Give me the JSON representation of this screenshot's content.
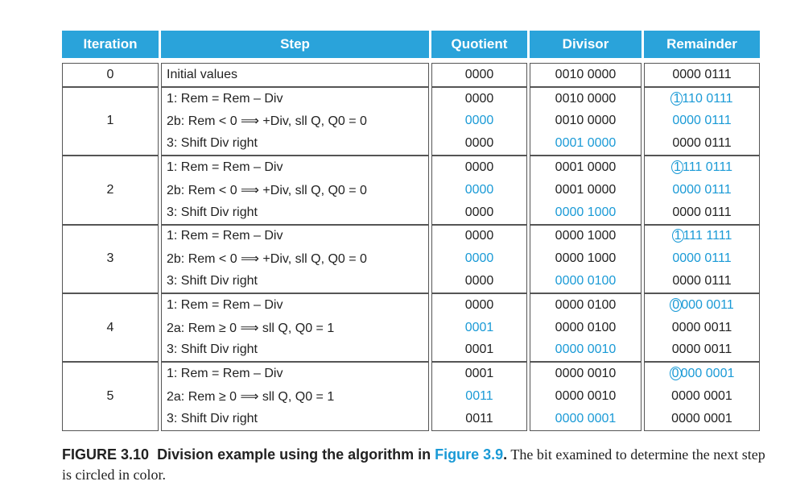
{
  "table": {
    "header": [
      "Iteration",
      "Step",
      "Quotient",
      "Divisor",
      "Remainder"
    ],
    "groups": [
      {
        "iteration": "0",
        "rows": [
          {
            "step": "Initial values",
            "quotient": "0000",
            "divisor": "0010 0000",
            "remainder": "0000 0111"
          }
        ]
      },
      {
        "iteration": "1",
        "rows": [
          {
            "step": "1: Rem = Rem – Div",
            "quotient": "0000",
            "divisor": "0010 0000",
            "remainder": "1110 0111",
            "highlight": "remainder",
            "circled": true
          },
          {
            "step": "2b: Rem < 0 ⟹ +Div, sll Q, Q0 = 0",
            "quotient": "0000",
            "divisor": "0010 0000",
            "remainder": "0000 0111",
            "highlight": [
              "quotient",
              "remainder"
            ]
          },
          {
            "step": "3: Shift Div right",
            "quotient": "0000",
            "divisor": "0001 0000",
            "remainder": "0000 0111",
            "highlight": "divisor"
          }
        ]
      },
      {
        "iteration": "2",
        "rows": [
          {
            "step": "1: Rem = Rem – Div",
            "quotient": "0000",
            "divisor": "0001 0000",
            "remainder": "1111 0111",
            "highlight": "remainder",
            "circled": true
          },
          {
            "step": "2b: Rem < 0 ⟹ +Div, sll Q, Q0 = 0",
            "quotient": "0000",
            "divisor": "0001 0000",
            "remainder": "0000 0111",
            "highlight": [
              "quotient",
              "remainder"
            ]
          },
          {
            "step": "3: Shift Div right",
            "quotient": "0000",
            "divisor": "0000 1000",
            "remainder": "0000 0111",
            "highlight": "divisor"
          }
        ]
      },
      {
        "iteration": "3",
        "rows": [
          {
            "step": "1: Rem = Rem – Div",
            "quotient": "0000",
            "divisor": "0000 1000",
            "remainder": "1111 1111",
            "highlight": "remainder",
            "circled": true
          },
          {
            "step": "2b: Rem < 0 ⟹ +Div, sll Q, Q0 = 0",
            "quotient": "0000",
            "divisor": "0000 1000",
            "remainder": "0000 0111",
            "highlight": [
              "quotient",
              "remainder"
            ]
          },
          {
            "step": "3: Shift Div right",
            "quotient": "0000",
            "divisor": "0000 0100",
            "remainder": "0000 0111",
            "highlight": "divisor"
          }
        ]
      },
      {
        "iteration": "4",
        "rows": [
          {
            "step": "1: Rem = Rem – Div",
            "quotient": "0000",
            "divisor": "0000 0100",
            "remainder": "0000 0011",
            "highlight": "remainder",
            "circled": true
          },
          {
            "step": "2a: Rem ≥ 0 ⟹ sll Q, Q0 = 1",
            "quotient": "0001",
            "divisor": "0000 0100",
            "remainder": "0000 0011",
            "highlight": "quotient"
          },
          {
            "step": "3: Shift Div right",
            "quotient": "0001",
            "divisor": "0000 0010",
            "remainder": "0000 0011",
            "highlight": "divisor"
          }
        ]
      },
      {
        "iteration": "5",
        "rows": [
          {
            "step": "1: Rem = Rem – Div",
            "quotient": "0001",
            "divisor": "0000 0010",
            "remainder": "0000 0001",
            "highlight": "remainder",
            "circled": true
          },
          {
            "step": "2a: Rem ≥ 0 ⟹ sll Q, Q0 = 1",
            "quotient": "0011",
            "divisor": "0000 0010",
            "remainder": "0000 0001",
            "highlight": "quotient"
          },
          {
            "step": "3: Shift Div right",
            "quotient": "0011",
            "divisor": "0000 0001",
            "remainder": "0000 0001",
            "highlight": "divisor"
          }
        ]
      }
    ],
    "highlight_color": "#1a9ad6",
    "header_color": "#2aa3da"
  },
  "caption": {
    "label": "FIGURE 3.10",
    "title": "Division example using the algorithm in ",
    "link": "Figure 3.9",
    "title_end": ".",
    "text": " The bit examined to determine the next step is circled in color."
  }
}
